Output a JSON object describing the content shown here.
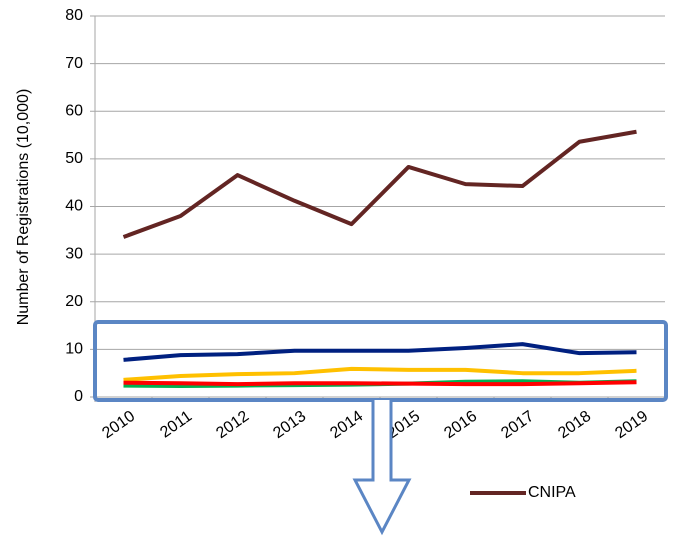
{
  "chart_data": {
    "type": "line",
    "y_label": "Number of Registrations  (10,000)",
    "categories": [
      "2010",
      "2011",
      "2012",
      "2013",
      "2014",
      "2015",
      "2016",
      "2017",
      "2018",
      "2019"
    ],
    "series": [
      {
        "name": "CNIPA",
        "color": "#632523",
        "values": [
          33.6,
          38.0,
          46.6,
          41.2,
          36.3,
          48.3,
          44.7,
          44.3,
          53.6,
          55.7
        ]
      },
      {
        "color": "#002080",
        "values": [
          7.8,
          8.8,
          9.0,
          9.7,
          9.7,
          9.7,
          10.3,
          11.1,
          9.2,
          9.4
        ]
      },
      {
        "color": "#ffc000",
        "values": [
          3.6,
          4.4,
          4.8,
          5.0,
          5.9,
          5.7,
          5.7,
          5.0,
          5.0,
          5.5
        ]
      },
      {
        "color": "#00b050",
        "values": [
          2.4,
          2.3,
          2.4,
          2.5,
          2.6,
          2.8,
          3.2,
          3.3,
          3.0,
          3.3
        ]
      },
      {
        "color": "#ff0000",
        "values": [
          3.0,
          2.9,
          2.7,
          2.9,
          2.9,
          2.8,
          2.7,
          2.7,
          2.9,
          3.1
        ]
      }
    ],
    "ylim": [
      0,
      80
    ],
    "yticks": [
      0,
      10,
      20,
      30,
      40,
      50,
      60,
      70,
      80
    ],
    "grid": true,
    "legend": "lower right"
  }
}
